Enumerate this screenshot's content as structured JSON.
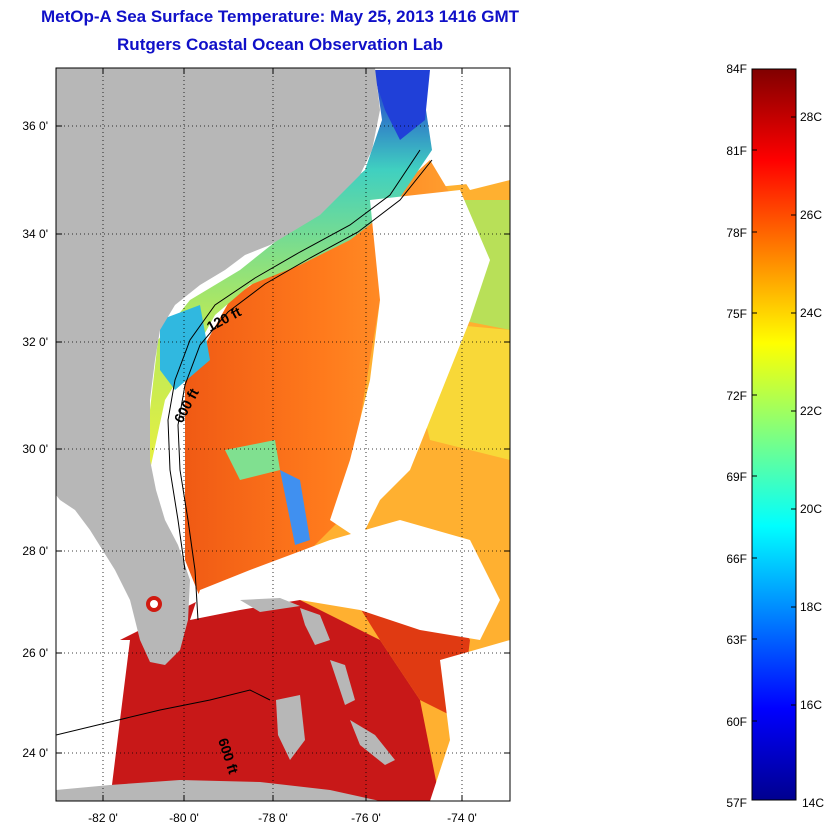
{
  "title": "MetOp-A Sea Surface Temperature:  May 25, 2013 1416 GMT",
  "subtitle": "Rutgers Coastal Ocean Observation Lab",
  "map": {
    "lat_ticks": [
      "36 0'",
      "34 0'",
      "32 0'",
      "30 0'",
      "28 0'",
      "26 0'",
      "24 0'"
    ],
    "lon_ticks": [
      "-82 0'",
      "-80 0'",
      "-78 0'",
      "-76 0'",
      "-74 0'"
    ],
    "contour_labels": [
      "120 ft",
      "600 ft",
      "600 ft"
    ],
    "colors": {
      "land": "#b7b7b7",
      "cloud": "#ffffff",
      "grid": "#000000"
    }
  },
  "colorbar": {
    "fahrenheit_labels": [
      "84F",
      "81F",
      "78F",
      "75F",
      "72F",
      "69F",
      "66F",
      "63F",
      "60F",
      "57F"
    ],
    "celsius_labels": [
      "28C",
      "26C",
      "24C",
      "22C",
      "20C",
      "18C",
      "16C",
      "14C"
    ],
    "range_celsius": [
      14,
      29
    ],
    "colormap": "jet"
  }
}
